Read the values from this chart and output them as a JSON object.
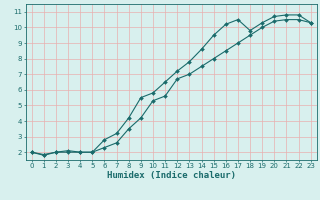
{
  "title": "",
  "xlabel": "Humidex (Indice chaleur)",
  "bg_color": "#d8f0ee",
  "grid_color_major": "#e8b0b0",
  "grid_color_minor": "#e8c8c8",
  "line_color": "#1a6b6b",
  "x_min": -0.5,
  "x_max": 23.5,
  "y_min": 1.5,
  "y_max": 11.5,
  "line1_x": [
    0,
    1,
    2,
    3,
    4,
    5,
    6,
    7,
    8,
    9,
    10,
    11,
    12,
    13,
    14,
    15,
    16,
    17,
    18,
    19,
    20,
    21,
    22,
    23
  ],
  "line1_y": [
    2.0,
    1.8,
    2.0,
    2.0,
    2.0,
    2.0,
    2.8,
    3.2,
    4.2,
    5.5,
    5.8,
    6.5,
    7.2,
    7.8,
    8.6,
    9.5,
    10.2,
    10.5,
    9.8,
    10.3,
    10.7,
    10.8,
    10.8,
    10.3
  ],
  "line2_x": [
    0,
    1,
    2,
    3,
    4,
    5,
    6,
    7,
    8,
    9,
    10,
    11,
    12,
    13,
    14,
    15,
    16,
    17,
    18,
    19,
    20,
    21,
    22,
    23
  ],
  "line2_y": [
    2.0,
    1.85,
    2.0,
    2.1,
    2.0,
    2.0,
    2.3,
    2.6,
    3.5,
    4.2,
    5.3,
    5.6,
    6.7,
    7.0,
    7.5,
    8.0,
    8.5,
    9.0,
    9.5,
    10.0,
    10.4,
    10.5,
    10.5,
    10.3
  ],
  "yticks": [
    2,
    3,
    4,
    5,
    6,
    7,
    8,
    9,
    10,
    11
  ],
  "xticks": [
    0,
    1,
    2,
    3,
    4,
    5,
    6,
    7,
    8,
    9,
    10,
    11,
    12,
    13,
    14,
    15,
    16,
    17,
    18,
    19,
    20,
    21,
    22,
    23
  ],
  "tick_fontsize": 5.0,
  "label_fontsize": 6.5,
  "marker": "D",
  "marker_size": 2.0,
  "line_width": 0.8
}
